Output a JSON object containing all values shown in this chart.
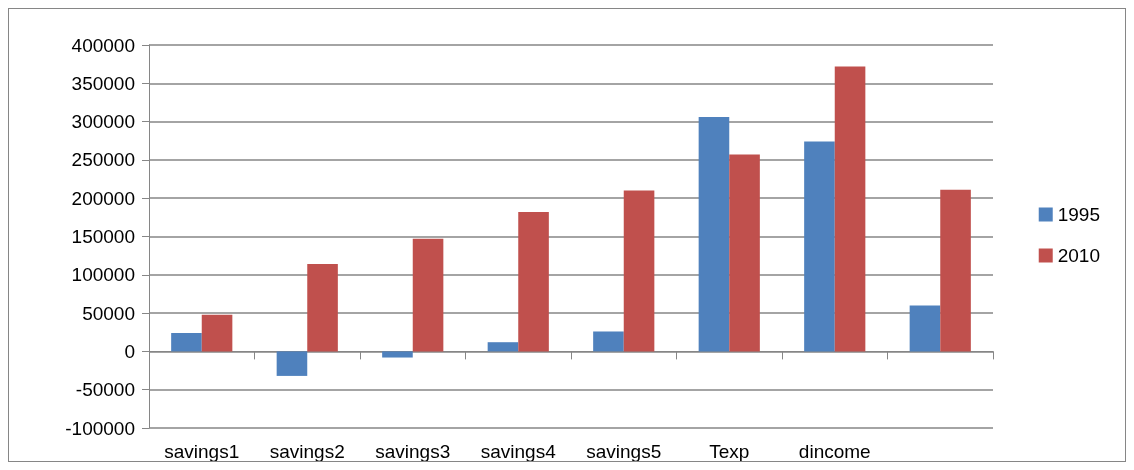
{
  "chart_data": {
    "type": "bar",
    "categories": [
      "savings1",
      "savings2",
      "savings3",
      "savings4",
      "savings5",
      "Texp",
      "dincome",
      null
    ],
    "series": [
      {
        "name": "1995",
        "color": "#4f81bd",
        "values": [
          24000,
          -32000,
          -8000,
          12000,
          26000,
          306000,
          274000,
          60000
        ]
      },
      {
        "name": "2010",
        "color": "#c0504d",
        "values": [
          48000,
          114000,
          147000,
          182000,
          210000,
          257000,
          372000,
          211000
        ]
      }
    ],
    "ylim": [
      -100000,
      400000
    ],
    "yticks": [
      -100000,
      -50000,
      0,
      50000,
      100000,
      150000,
      200000,
      250000,
      300000,
      350000,
      400000
    ],
    "grid": "y",
    "legend": "right"
  }
}
